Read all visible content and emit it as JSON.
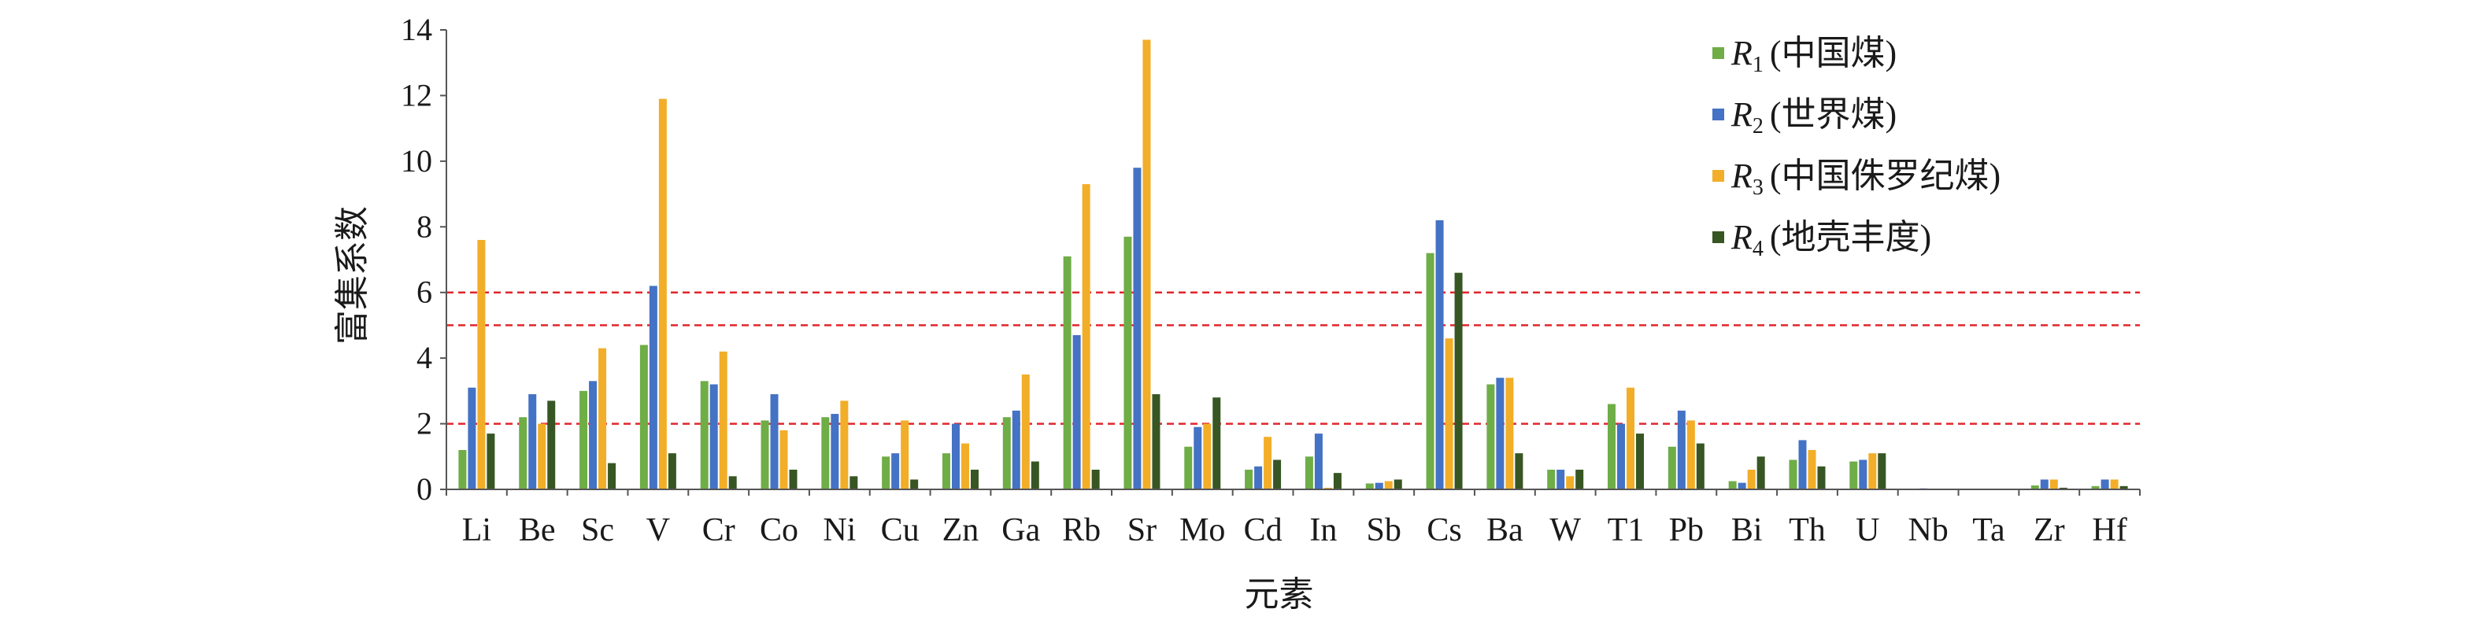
{
  "chart_data": {
    "type": "bar",
    "xlabel": "元素",
    "ylabel": "富集系数",
    "ylim": [
      0,
      14
    ],
    "yticks": [
      0,
      2,
      4,
      6,
      8,
      10,
      12,
      14
    ],
    "categories": [
      "Li",
      "Be",
      "Sc",
      "V",
      "Cr",
      "Co",
      "Ni",
      "Cu",
      "Zn",
      "Ga",
      "Rb",
      "Sr",
      "Mo",
      "Cd",
      "In",
      "Sb",
      "Cs",
      "Ba",
      "W",
      "T1",
      "Pb",
      "Bi",
      "Th",
      "U",
      "Nb",
      "Ta",
      "Zr",
      "Hf"
    ],
    "series": [
      {
        "key": "R",
        "sub": "1",
        "paren": "(中国煤)",
        "color": "#6fad47",
        "values": [
          1.2,
          2.2,
          3.0,
          4.4,
          3.3,
          2.1,
          2.2,
          1.0,
          1.1,
          2.2,
          7.1,
          7.7,
          1.3,
          0.6,
          1.0,
          0.18,
          7.2,
          3.2,
          0.6,
          2.6,
          1.3,
          0.25,
          0.9,
          0.85,
          0.02,
          0.02,
          0.12,
          0.1
        ]
      },
      {
        "key": "R",
        "sub": "2",
        "paren": "(世界煤)",
        "color": "#4472c4",
        "values": [
          3.1,
          2.9,
          3.3,
          6.2,
          3.2,
          2.9,
          2.3,
          1.1,
          2.0,
          2.4,
          4.7,
          9.8,
          1.9,
          0.7,
          1.7,
          0.2,
          8.2,
          3.4,
          0.6,
          2.0,
          2.4,
          0.2,
          1.5,
          0.9,
          0.03,
          0.02,
          0.3,
          0.3
        ]
      },
      {
        "key": "R",
        "sub": "3",
        "paren": "(中国侏罗纪煤)",
        "color": "#f2ae28",
        "values": [
          7.6,
          2.0,
          4.3,
          11.9,
          4.2,
          1.8,
          2.7,
          2.1,
          1.4,
          3.5,
          9.3,
          13.7,
          2.0,
          1.6,
          0.05,
          0.25,
          4.6,
          3.4,
          0.4,
          3.1,
          2.1,
          0.6,
          1.2,
          1.1,
          0.02,
          0.02,
          0.3,
          0.3
        ]
      },
      {
        "key": "R",
        "sub": "4",
        "paren": "(地壳丰度)",
        "color": "#375623",
        "values": [
          1.7,
          2.7,
          0.8,
          1.1,
          0.4,
          0.6,
          0.4,
          0.3,
          0.6,
          0.85,
          0.6,
          2.9,
          2.8,
          0.9,
          0.5,
          0.3,
          6.6,
          1.1,
          0.6,
          1.7,
          1.4,
          1.0,
          0.7,
          1.1,
          0.0,
          0.0,
          0.05,
          0.1
        ]
      }
    ],
    "reference_lines": [
      2,
      5,
      6
    ],
    "reference_line_color": "#e0262b",
    "legend_position": "top-right",
    "grid": false
  }
}
